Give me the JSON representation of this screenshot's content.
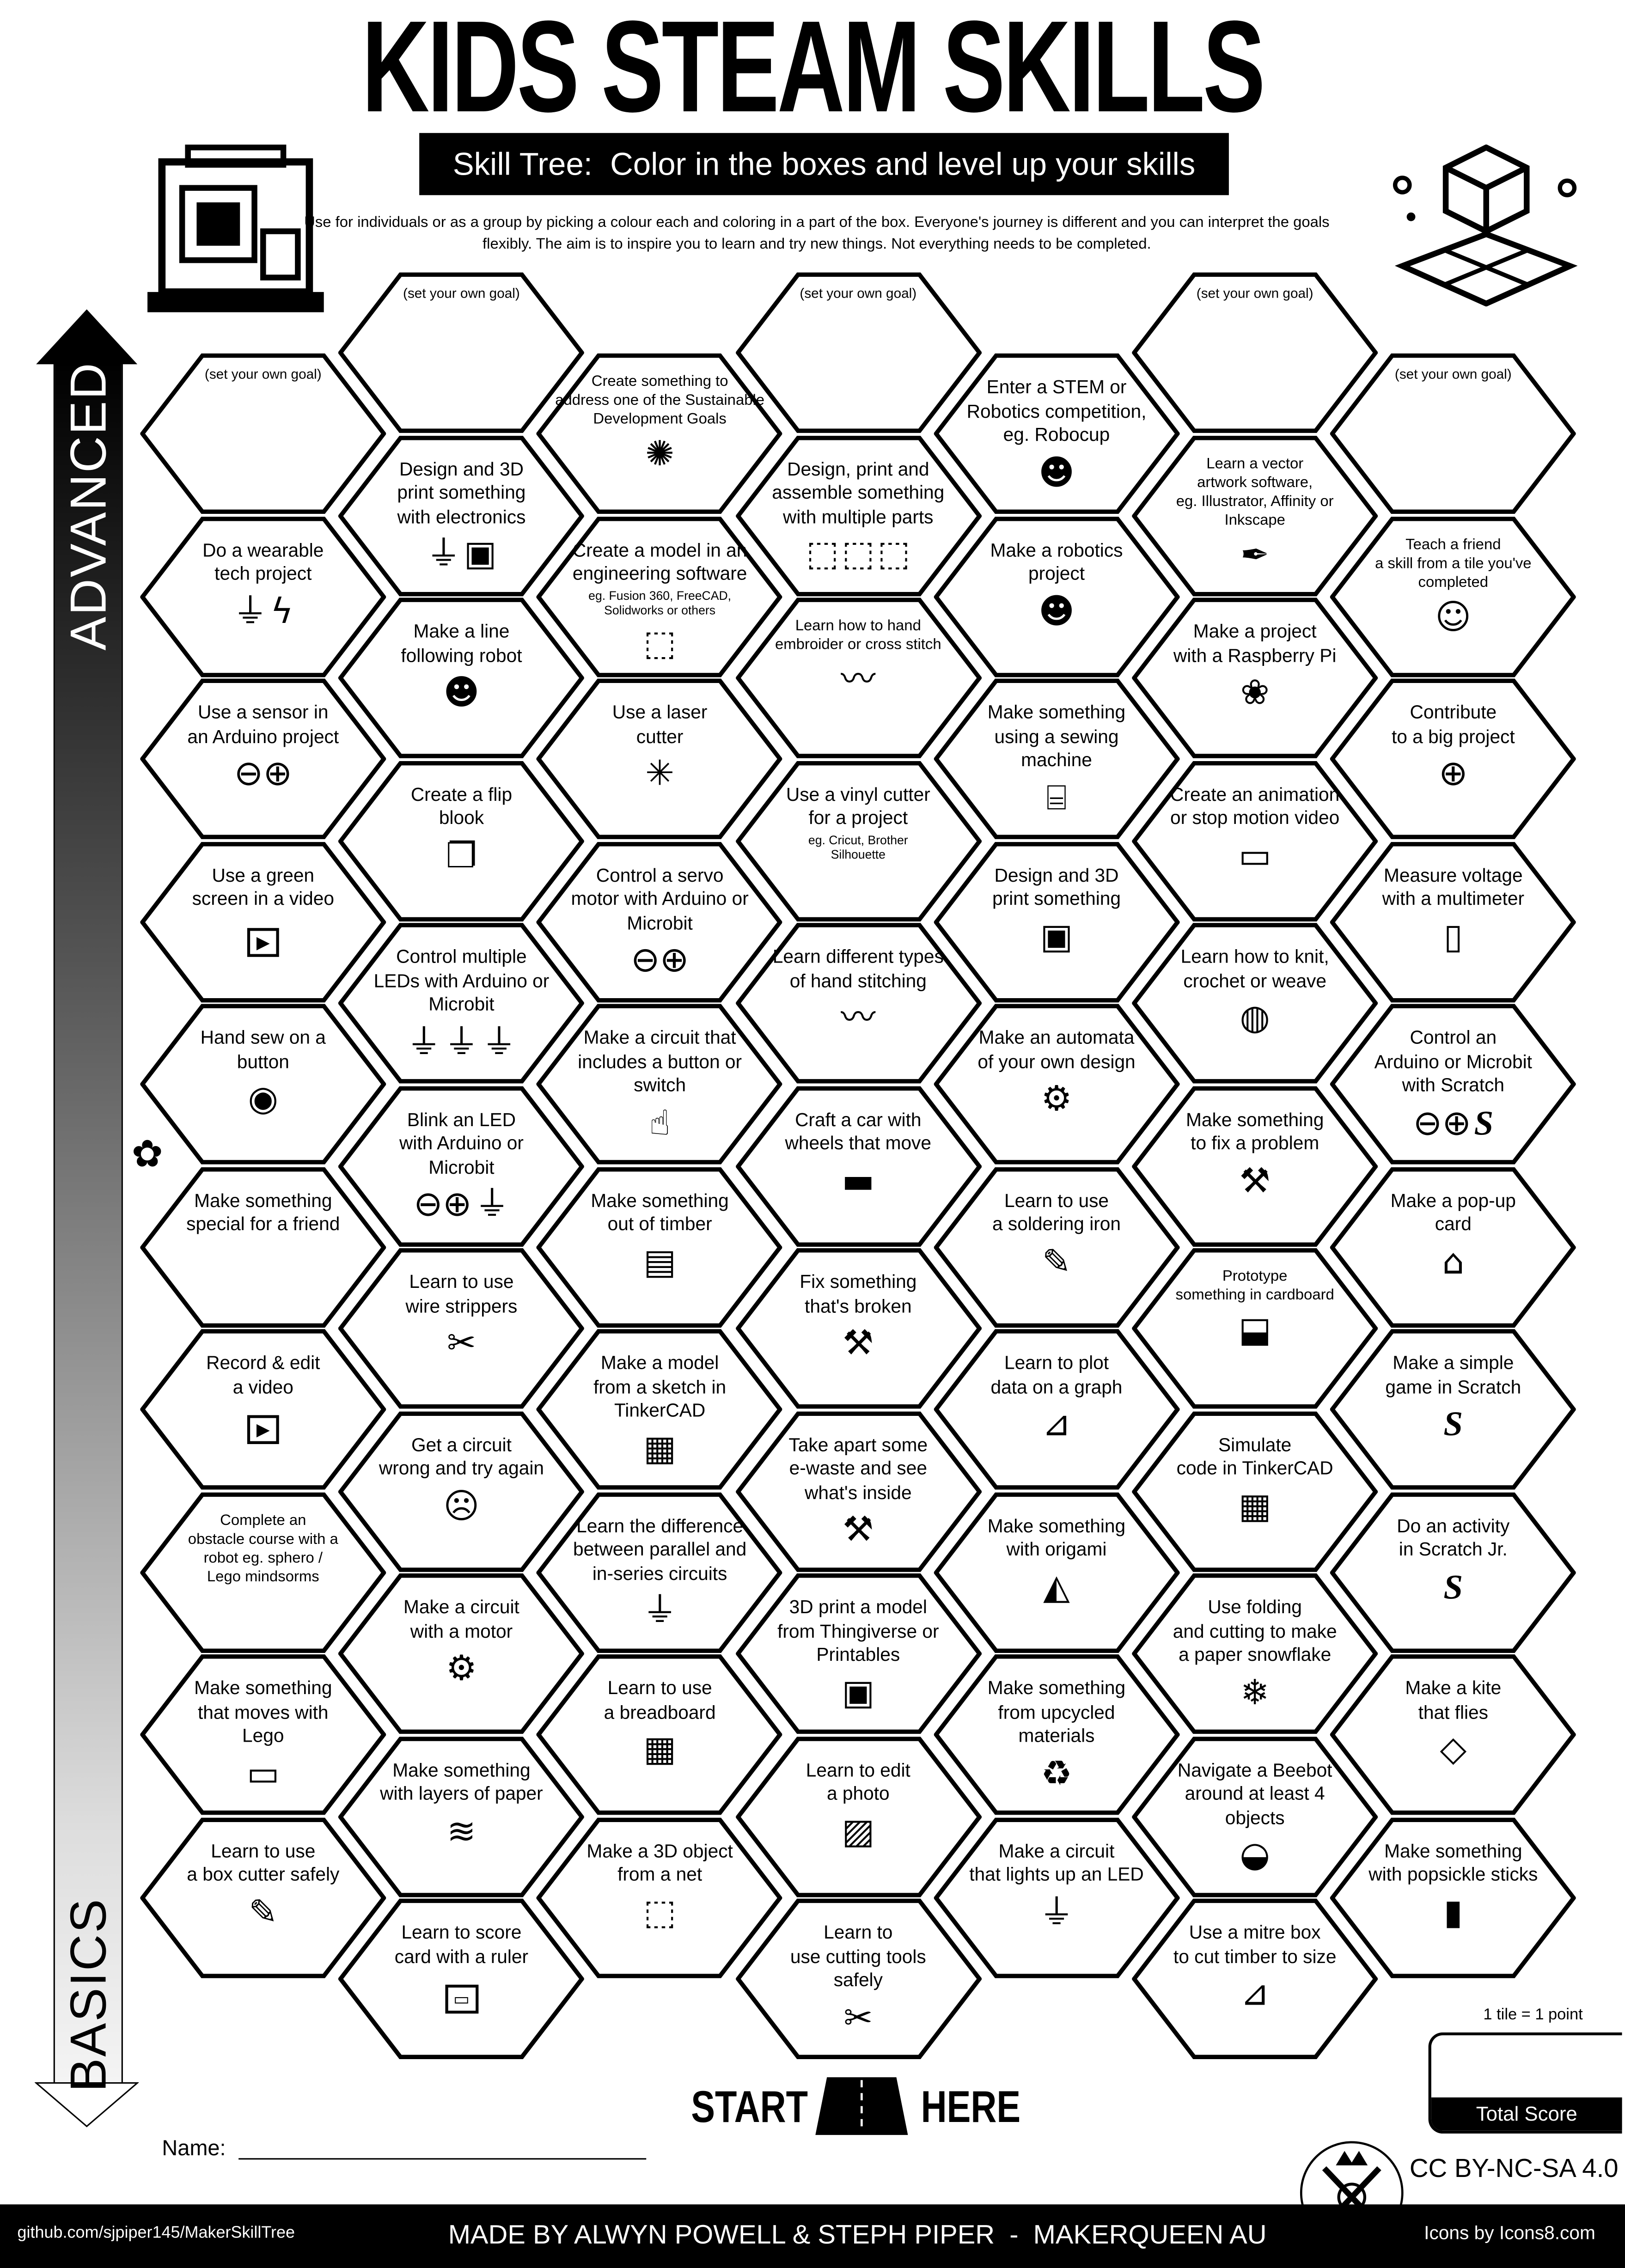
{
  "header": {
    "title": "KIDS STEAM SKILLS",
    "subtitle": "Skill Tree:  Color in the boxes and level up your skills",
    "description": "Use for individuals or as a group by picking a colour each and coloring in a part of the box.  Everyone's journey is different and you can interpret the goals flexibly.  The aim is to inspire you to learn and try new things. Not everything needs to be completed."
  },
  "axis": {
    "top_label": "ADVANCED",
    "bottom_label": "BASICS"
  },
  "columns": [
    {
      "tiles": [
        {
          "text": "(set your own goal)",
          "goal": true
        },
        {
          "text": "Do a wearable\ntech project",
          "icons": [
            "led",
            "lightning"
          ]
        },
        {
          "text": "Use a sensor in\nan Arduino project",
          "icons": [
            "arduino"
          ]
        },
        {
          "text": "Use a green\nscreen in a video",
          "icons": [
            "play"
          ]
        },
        {
          "text": "Hand sew on a\nbutton",
          "icons": [
            "sewing-button"
          ]
        },
        {
          "text": "Make something\nspecial for a friend",
          "icons": [
            "gift-bow"
          ]
        },
        {
          "text": "Record & edit\na video",
          "icons": [
            "play"
          ]
        },
        {
          "text": "Complete an\nobstacle course with a\nrobot eg. sphero /\nLego mindsorms",
          "icons": []
        },
        {
          "text": "Make something\nthat moves with\nLego",
          "icons": [
            "lego"
          ]
        },
        {
          "text": "Learn to use\na box cutter safely",
          "icons": [
            "box-cutter"
          ]
        }
      ]
    },
    {
      "tiles": [
        {
          "text": "(set your own goal)",
          "goal": true
        },
        {
          "text": "Design and 3D\nprint something\nwith electronics",
          "icons": [
            "led",
            "3d-printer"
          ]
        },
        {
          "text": "Make a line\nfollowing robot",
          "icons": [
            "robot"
          ]
        },
        {
          "text": "Create a flip\nblook",
          "icons": [
            "book"
          ]
        },
        {
          "text": "Control multiple\nLEDs with Arduino or\nMicrobit",
          "icons": [
            "led",
            "led",
            "led"
          ]
        },
        {
          "text": "Blink an LED\nwith Arduino or\nMicrobit",
          "icons": [
            "arduino",
            "led"
          ]
        },
        {
          "text": "Learn to use\nwire strippers",
          "icons": [
            "wire-stripper"
          ]
        },
        {
          "text": "Get a circuit\nwrong and try again",
          "icons": [
            "facepalm"
          ]
        },
        {
          "text": "Make a circuit\nwith a motor",
          "icons": [
            "motor"
          ]
        },
        {
          "text": "Make something\nwith layers of paper",
          "icons": [
            "layers"
          ]
        },
        {
          "text": "Learn to score\ncard with a ruler",
          "icons": [
            "ruler"
          ]
        }
      ]
    },
    {
      "tiles": [
        {
          "text": "Create something to\naddress one of the Sustainable\nDevelopment Goals",
          "icons": [
            "sdg-wheel"
          ]
        },
        {
          "text": "Create a model in an\nengineering software",
          "sub": "eg. Fusion 360, FreeCAD,\nSolidworks or others",
          "icons": [
            "cube"
          ]
        },
        {
          "text": "Use a laser\ncutter",
          "icons": [
            "laser"
          ]
        },
        {
          "text": "Control a servo\nmotor with Arduino or\nMicrobit",
          "icons": [
            "arduino"
          ]
        },
        {
          "text": "Make a circuit that\nincludes a button or\nswitch",
          "icons": [
            "finger-press"
          ]
        },
        {
          "text": "Make something\nout of timber",
          "icons": [
            "timber"
          ]
        },
        {
          "text": "Make a model\nfrom a sketch in\nTinkerCAD",
          "icons": [
            "tinkercad"
          ]
        },
        {
          "text": "Learn the difference\nbetween parallel and\nin-series circuits",
          "icons": [
            "led"
          ]
        },
        {
          "text": "Learn to use\na breadboard",
          "icons": [
            "breadboard"
          ]
        },
        {
          "text": "Make a 3D object\nfrom a net",
          "icons": [
            "cube"
          ]
        }
      ]
    },
    {
      "tiles": [
        {
          "text": "(set your own goal)",
          "goal": true
        },
        {
          "text": "Design, print and\nassemble something\nwith multiple parts",
          "icons": [
            "cube",
            "cube",
            "cube"
          ]
        },
        {
          "text": "Learn how to hand\nembroider or cross stitch",
          "icons": [
            "stitching"
          ]
        },
        {
          "text": "Use a vinyl cutter\nfor a project",
          "sub": "eg. Cricut, Brother\nSilhouette",
          "icons": []
        },
        {
          "text": "Learn different types\nof hand stitching",
          "icons": [
            "stitching"
          ]
        },
        {
          "text": "Craft a car with\nwheels that move",
          "icons": [
            "car"
          ]
        },
        {
          "text": "Fix something\nthat's broken",
          "icons": [
            "tools"
          ]
        },
        {
          "text": "Take apart some\ne-waste and see\nwhat's inside",
          "icons": [
            "tools"
          ]
        },
        {
          "text": "3D print a model\nfrom Thingiverse or\nPrintables",
          "icons": [
            "3d-printer"
          ]
        },
        {
          "text": "Learn to edit\na photo",
          "icons": [
            "photo"
          ]
        },
        {
          "text": "Learn to\nuse cutting tools\nsafely",
          "icons": [
            "scissors"
          ]
        }
      ]
    },
    {
      "tiles": [
        {
          "text": "Enter a STEM or\nRobotics competition,\neg. Robocup",
          "icons": [
            "robot"
          ]
        },
        {
          "text": "Make a robotics\nproject",
          "icons": [
            "robot"
          ]
        },
        {
          "text": "Make something\nusing a sewing\nmachine",
          "icons": [
            "sewing-machine"
          ]
        },
        {
          "text": "Design and 3D\nprint something",
          "icons": [
            "3d-printer"
          ]
        },
        {
          "text": "Make an automata\nof your own design",
          "icons": [
            "gears"
          ]
        },
        {
          "text": "Learn to use\na soldering iron",
          "icons": [
            "soldering-iron"
          ]
        },
        {
          "text": "Learn to plot\ndata on a graph",
          "icons": [
            "graph"
          ]
        },
        {
          "text": "Make something\nwith origami",
          "icons": [
            "origami"
          ]
        },
        {
          "text": "Make something\nfrom upcycled\nmaterials",
          "icons": [
            "recycle"
          ]
        },
        {
          "text": "Make a circuit\nthat lights up an LED",
          "icons": [
            "led"
          ]
        }
      ]
    },
    {
      "tiles": [
        {
          "text": "(set your own goal)",
          "goal": true
        },
        {
          "text": "Learn a vector\nartwork software,\neg. Illustrator, Affinity or\nInkscape",
          "icons": [
            "vector-pen"
          ]
        },
        {
          "text": "Make a project\nwith a Raspberry Pi",
          "icons": [
            "raspberry-pi"
          ]
        },
        {
          "text": "Create an animation\nor stop motion video",
          "icons": [
            "projector"
          ]
        },
        {
          "text": "Learn how to knit,\ncrochet or weave",
          "icons": [
            "yarn"
          ]
        },
        {
          "text": "Make something\nto fix a problem",
          "icons": [
            "tools"
          ]
        },
        {
          "text": "Prototype\nsomething in cardboard",
          "icons": [
            "cardboard-box"
          ]
        },
        {
          "text": "Simulate\ncode in TinkerCAD",
          "icons": [
            "tinkercad"
          ]
        },
        {
          "text": "Use folding\nand cutting to make\na paper snowflake",
          "icons": [
            "snowflake"
          ]
        },
        {
          "text": "Navigate a Beebot\naround at least 4\nobjects",
          "icons": [
            "beebot"
          ]
        },
        {
          "text": "Use a mitre box\nto cut timber to size",
          "icons": [
            "mitre-box"
          ]
        }
      ]
    },
    {
      "tiles": [
        {
          "text": "(set your own goal)",
          "goal": true
        },
        {
          "text": "Teach a friend\na skill from a tile you've\ncompleted",
          "icons": [
            "teacher"
          ]
        },
        {
          "text": "Contribute\nto a big project",
          "icons": [
            "globe"
          ]
        },
        {
          "text": "Measure voltage\nwith a multimeter",
          "icons": [
            "multimeter"
          ]
        },
        {
          "text": "Control an\nArduino or Microbit\nwith Scratch",
          "icons": [
            "arduino",
            "scratch"
          ]
        },
        {
          "text": "Make a pop-up\ncard",
          "icons": [
            "popup-card"
          ]
        },
        {
          "text": "Make a simple\ngame in Scratch",
          "icons": [
            "scratch"
          ]
        },
        {
          "text": "Do an activity\nin Scratch Jr.",
          "icons": [
            "scratch"
          ]
        },
        {
          "text": "Make a kite\nthat flies",
          "icons": [
            "kite"
          ]
        },
        {
          "text": "Make something\nwith popsickle sticks",
          "icons": [
            "popsicle"
          ]
        }
      ]
    }
  ],
  "start": {
    "left": "START",
    "right": "HERE"
  },
  "name_label": "Name:",
  "score": {
    "note": "1 tile = 1 point",
    "label": "Total Score"
  },
  "license": "CC BY-NC-SA 4.0",
  "footer": {
    "github": "github.com/sjpiper145/MakerSkillTree",
    "credits": "MADE BY ALWYN POWELL & STEPH PIPER  -  MAKERQUEEN AU",
    "icons_credit": "Icons by Icons8.com"
  }
}
